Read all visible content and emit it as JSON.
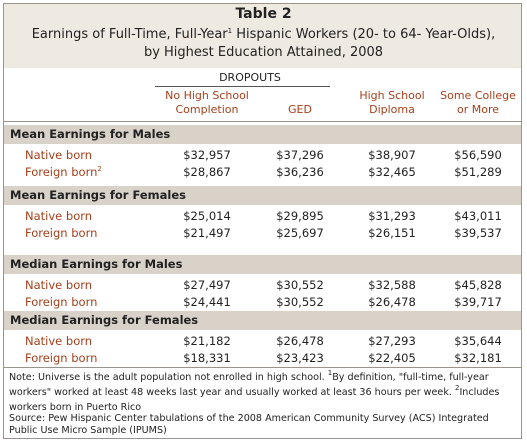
{
  "title": {
    "label": "Table 2",
    "line1": [
      {
        "text": "Earnings of Full-Time, Full-Year"
      },
      {
        "sup": "1"
      },
      {
        "text": " Hispanic Workers (20- to 64- Year-Olds),"
      }
    ],
    "line2": "by Highest Education Attained, 2008"
  },
  "header": {
    "group": "DROPOUTS",
    "columns": [
      [
        "No High School",
        "Completion"
      ],
      [
        "GED"
      ],
      [
        "High School",
        "Diploma"
      ],
      [
        "Some College",
        "or More"
      ]
    ]
  },
  "sections": [
    {
      "title": "Mean Earnings for Males",
      "rows": [
        {
          "label": "Native born",
          "values": [
            "$32,957",
            "$37,296",
            "$38,907",
            "$56,590"
          ]
        },
        {
          "label": "Foreign born",
          "sup": "2",
          "values": [
            "$28,867",
            "$36,236",
            "$32,465",
            "$51,289"
          ]
        }
      ]
    },
    {
      "title": "Mean Earnings for Females",
      "rows": [
        {
          "label": "Native born",
          "values": [
            "$25,014",
            "$29,895",
            "$31,293",
            "$43,011"
          ]
        },
        {
          "label": "Foreign born",
          "values": [
            "$21,497",
            "$25,697",
            "$26,151",
            "$39,537"
          ]
        }
      ]
    },
    {
      "title": "Median Earnings for Males",
      "rows": [
        {
          "label": "Native born",
          "values": [
            "$27,497",
            "$30,552",
            "$32,588",
            "$45,828"
          ]
        },
        {
          "label": "Foreign born",
          "values": [
            "$24,441",
            "$30,552",
            "$26,478",
            "$39,717"
          ]
        }
      ]
    },
    {
      "title": "Median Earnings for Females",
      "rows": [
        {
          "label": "Native born",
          "values": [
            "$21,182",
            "$26,478",
            "$27,293",
            "$35,644"
          ]
        },
        {
          "label": "Foreign born",
          "values": [
            "$18,331",
            "$23,423",
            "$22,405",
            "$32,181"
          ]
        }
      ]
    }
  ],
  "note": [
    {
      "text": "Note: Universe is the adult population not enrolled in high school. "
    },
    {
      "sup": "1"
    },
    {
      "text": "By definition, \"full-time, full-year workers\" worked at least 48 weeks last year and usually worked at least 36 hours per week. "
    },
    {
      "sup": "2"
    },
    {
      "text": "Includes workers born in Puerto Rico"
    }
  ],
  "source": "Source: Pew Hispanic Center tabulations of the 2008 American Community Survey (ACS) Integrated Public Use Micro Sample (IPUMS)"
}
